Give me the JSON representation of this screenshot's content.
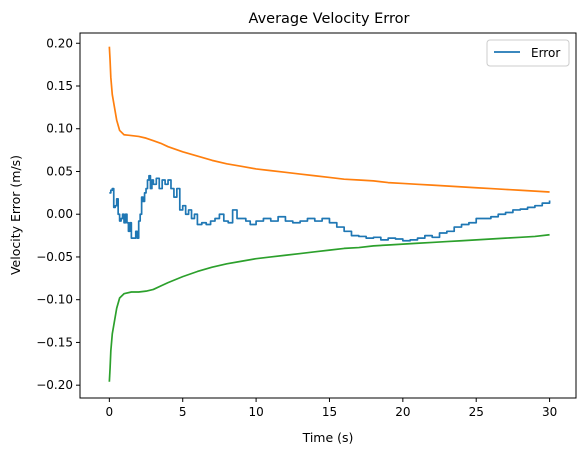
{
  "chart_data": {
    "type": "line",
    "title": "Average Velocity Error",
    "xlabel": "Time (s)",
    "ylabel": "Velocity Error (m/s)",
    "xlim": [
      -2.0,
      31.8
    ],
    "ylim": [
      -0.215,
      0.212
    ],
    "xticks": [
      0,
      5,
      10,
      15,
      20,
      25,
      30
    ],
    "yticks": [
      -0.2,
      -0.15,
      -0.1,
      -0.05,
      0.0,
      0.05,
      0.1,
      0.15,
      0.2
    ],
    "xtick_labels": [
      "0",
      "5",
      "10",
      "15",
      "20",
      "25",
      "30"
    ],
    "ytick_labels": [
      "−0.20",
      "−0.15",
      "−0.10",
      "−0.05",
      "0.00",
      "0.05",
      "0.10",
      "0.15",
      "0.20"
    ],
    "grid": false,
    "legend": {
      "placement": "top-right",
      "entries": [
        "Error"
      ]
    },
    "series": [
      {
        "name": "Error",
        "color": "#1f77b4",
        "step": true,
        "x": [
          0,
          0.1,
          0.2,
          0.3,
          0.4,
          0.5,
          0.6,
          0.7,
          0.8,
          0.9,
          1.0,
          1.1,
          1.2,
          1.3,
          1.4,
          1.5,
          1.6,
          1.7,
          1.8,
          1.9,
          2.0,
          2.1,
          2.2,
          2.3,
          2.4,
          2.5,
          2.6,
          2.7,
          2.8,
          2.9,
          3.0,
          3.2,
          3.4,
          3.6,
          3.8,
          4.0,
          4.2,
          4.4,
          4.6,
          4.8,
          5.0,
          5.2,
          5.4,
          5.6,
          5.8,
          6.0,
          6.3,
          6.6,
          6.9,
          7.2,
          7.5,
          7.8,
          8.1,
          8.4,
          8.7,
          9.0,
          9.3,
          9.6,
          10.0,
          10.5,
          11.0,
          11.5,
          12.0,
          12.5,
          13.0,
          13.5,
          14.0,
          14.5,
          15.0,
          15.5,
          16.0,
          16.5,
          17.0,
          17.5,
          18.0,
          18.5,
          19.0,
          19.5,
          20.0,
          20.5,
          21.0,
          21.5,
          22.0,
          22.5,
          23.0,
          23.5,
          24.0,
          24.5,
          25.0,
          25.5,
          26.0,
          26.5,
          27.0,
          27.5,
          28.0,
          28.5,
          29.0,
          29.5,
          30.0
        ],
        "values": [
          0.025,
          0.028,
          0.03,
          0.008,
          0.01,
          0.018,
          0.0,
          -0.008,
          -0.005,
          0.0,
          -0.01,
          0.0,
          -0.01,
          -0.02,
          -0.01,
          -0.028,
          -0.028,
          -0.028,
          -0.02,
          -0.028,
          -0.008,
          0.0,
          0.02,
          0.015,
          0.025,
          0.03,
          0.04,
          0.045,
          0.03,
          0.04,
          0.035,
          0.042,
          0.03,
          0.04,
          0.035,
          0.04,
          0.03,
          0.02,
          0.03,
          0.005,
          0.01,
          0.0,
          0.005,
          -0.005,
          0.0,
          -0.012,
          -0.01,
          -0.012,
          -0.008,
          -0.005,
          0.0,
          -0.008,
          -0.01,
          0.005,
          -0.005,
          -0.005,
          -0.008,
          -0.012,
          -0.008,
          -0.005,
          -0.008,
          -0.003,
          -0.008,
          -0.01,
          -0.008,
          -0.005,
          -0.008,
          -0.005,
          -0.01,
          -0.015,
          -0.02,
          -0.025,
          -0.026,
          -0.028,
          -0.027,
          -0.03,
          -0.028,
          -0.029,
          -0.031,
          -0.03,
          -0.028,
          -0.025,
          -0.027,
          -0.022,
          -0.02,
          -0.015,
          -0.012,
          -0.01,
          -0.005,
          -0.005,
          -0.003,
          0.0,
          0.002,
          0.005,
          0.006,
          0.008,
          0.01,
          0.013,
          0.016
        ]
      },
      {
        "name": "",
        "color": "#ff7f0e",
        "step": false,
        "x": [
          0,
          0.05,
          0.1,
          0.2,
          0.3,
          0.5,
          0.7,
          1.0,
          1.5,
          2.0,
          2.5,
          3.0,
          3.5,
          4.0,
          5.0,
          6.0,
          7.0,
          8.0,
          9.0,
          10.0,
          11.0,
          12.0,
          13.0,
          14.0,
          15.0,
          16.0,
          17.0,
          18.0,
          19.0,
          20.0,
          21.0,
          22.0,
          23.0,
          24.0,
          25.0,
          26.0,
          27.0,
          28.0,
          29.0,
          30.0
        ],
        "values": [
          0.196,
          0.18,
          0.16,
          0.14,
          0.13,
          0.11,
          0.098,
          0.093,
          0.092,
          0.091,
          0.089,
          0.086,
          0.083,
          0.079,
          0.073,
          0.068,
          0.063,
          0.059,
          0.056,
          0.053,
          0.051,
          0.049,
          0.047,
          0.045,
          0.043,
          0.041,
          0.04,
          0.039,
          0.037,
          0.036,
          0.035,
          0.034,
          0.033,
          0.032,
          0.031,
          0.03,
          0.029,
          0.028,
          0.027,
          0.026
        ]
      },
      {
        "name": "",
        "color": "#2ca02c",
        "step": false,
        "x": [
          0,
          0.05,
          0.1,
          0.2,
          0.3,
          0.5,
          0.7,
          1.0,
          1.5,
          2.0,
          2.5,
          3.0,
          3.5,
          4.0,
          5.0,
          6.0,
          7.0,
          8.0,
          9.0,
          10.0,
          11.0,
          12.0,
          13.0,
          14.0,
          15.0,
          16.0,
          17.0,
          18.0,
          19.0,
          20.0,
          21.0,
          22.0,
          23.0,
          24.0,
          25.0,
          26.0,
          27.0,
          28.0,
          29.0,
          30.0
        ],
        "values": [
          -0.196,
          -0.18,
          -0.16,
          -0.14,
          -0.13,
          -0.11,
          -0.098,
          -0.093,
          -0.091,
          -0.091,
          -0.09,
          -0.088,
          -0.084,
          -0.08,
          -0.073,
          -0.067,
          -0.062,
          -0.058,
          -0.055,
          -0.052,
          -0.05,
          -0.048,
          -0.046,
          -0.044,
          -0.042,
          -0.04,
          -0.039,
          -0.037,
          -0.036,
          -0.035,
          -0.034,
          -0.033,
          -0.032,
          -0.031,
          -0.03,
          -0.029,
          -0.028,
          -0.027,
          -0.026,
          -0.024
        ]
      }
    ]
  }
}
